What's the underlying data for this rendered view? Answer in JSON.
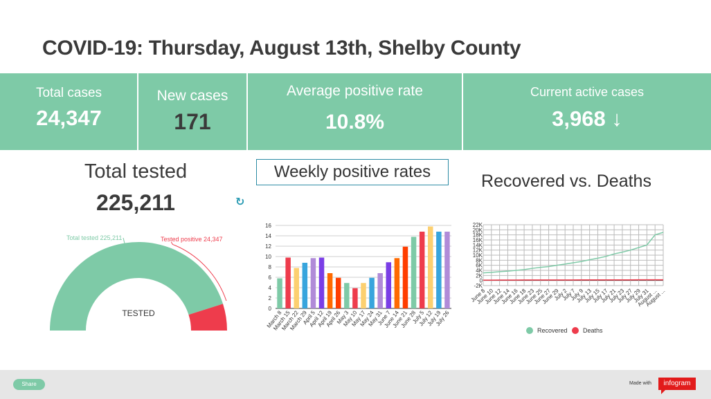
{
  "title": "COVID-19: Thursday, August 13th, Shelby County",
  "stats": {
    "total_cases_label": "Total cases",
    "total_cases_value": "24,347",
    "new_cases_label": "New cases",
    "new_cases_value": "171",
    "avg_positive_label": "Average positive rate",
    "avg_positive_value": "10.8%",
    "active_label": "Current active cases",
    "active_value": "3,968 ↓"
  },
  "tested": {
    "label": "Total tested",
    "value": "225,211"
  },
  "colors": {
    "accent": "#7ecaa7",
    "red": "#ee3c4c",
    "bar_palette": [
      "#7ecaa7",
      "#ee3c4c",
      "#fcd070",
      "#38a5dd",
      "#b08bd8",
      "#7a3ee6",
      "#ff6a00",
      "#ff3d00"
    ]
  },
  "chart_data": [
    {
      "type": "pie",
      "variant": "semi-donut",
      "center_label": "TESTED",
      "slices": [
        {
          "name": "Total tested",
          "value_label": "225,211",
          "value": 225211
        },
        {
          "name": "Tested positive",
          "value_label": "24,347",
          "value": 24347
        }
      ],
      "slice_labels": [
        "Total tested 225,211",
        "Tested positive 24,347"
      ]
    },
    {
      "type": "bar",
      "title": "Weekly positive rates",
      "categories": [
        "March 8",
        "March 15",
        "March 22",
        "March 29",
        "April 5",
        "April 12",
        "April 19",
        "April 26",
        "May 3",
        "May 10",
        "May 17",
        "May 24",
        "May 31",
        "June 7",
        "June 14",
        "June 21",
        "June 28",
        "July 5",
        "July 12",
        "July 19",
        "July 26"
      ],
      "values": [
        5.8,
        9.8,
        7.8,
        8.8,
        9.7,
        9.8,
        6.8,
        5.9,
        4.9,
        3.9,
        4.9,
        5.9,
        6.8,
        8.9,
        9.7,
        11.9,
        13.8,
        14.8,
        15.8,
        14.8,
        14.8
      ],
      "color_index": [
        0,
        1,
        2,
        3,
        4,
        5,
        6,
        7,
        0,
        1,
        2,
        3,
        4,
        5,
        6,
        7,
        0,
        1,
        2,
        3,
        4
      ],
      "ylim": [
        0,
        16
      ],
      "yticks": [
        0,
        2,
        4,
        6,
        8,
        10,
        12,
        14,
        16
      ],
      "grid": true
    },
    {
      "type": "line",
      "title": "Recovered vs. Deaths",
      "categories": [
        "June 8",
        "June 10",
        "June 12",
        "June 14",
        "June 16",
        "June 18",
        "June 23",
        "June 25",
        "June 27",
        "June 29",
        "July 2",
        "July 7",
        "July 9",
        "July 13",
        "July 15",
        "July 17",
        "July 21",
        "July 23",
        "July 27",
        "July 29",
        "July 31",
        "August ...",
        "August ..."
      ],
      "x_axis_type": "category",
      "ylim": [
        -2000,
        22000
      ],
      "yticks": [
        -2000,
        0,
        2000,
        4000,
        6000,
        8000,
        10000,
        12000,
        14000,
        16000,
        18000,
        20000,
        22000
      ],
      "ytick_labels": [
        "-2K",
        "0",
        "2K",
        "4K",
        "6K",
        "8K",
        "10K",
        "12K",
        "14K",
        "16K",
        "18K",
        "20K",
        "22K"
      ],
      "grid": true,
      "legend": "bottom",
      "series": [
        {
          "name": "Recovered",
          "color": "#7ecaa7",
          "values": [
            3000,
            3200,
            3500,
            3700,
            4000,
            4300,
            4800,
            5200,
            5500,
            6000,
            6500,
            7000,
            7500,
            8200,
            8800,
            9500,
            10500,
            11200,
            12000,
            13000,
            14000,
            18000,
            19000
          ]
        },
        {
          "name": "Deaths",
          "color": "#ee3c4c",
          "values": [
            150,
            160,
            170,
            180,
            190,
            200,
            205,
            210,
            215,
            220,
            225,
            230,
            235,
            240,
            245,
            250,
            255,
            260,
            265,
            270,
            275,
            280,
            285
          ]
        }
      ]
    }
  ],
  "footer": {
    "share_label": "Share",
    "made_with": "Made with",
    "brand": "infogram"
  }
}
